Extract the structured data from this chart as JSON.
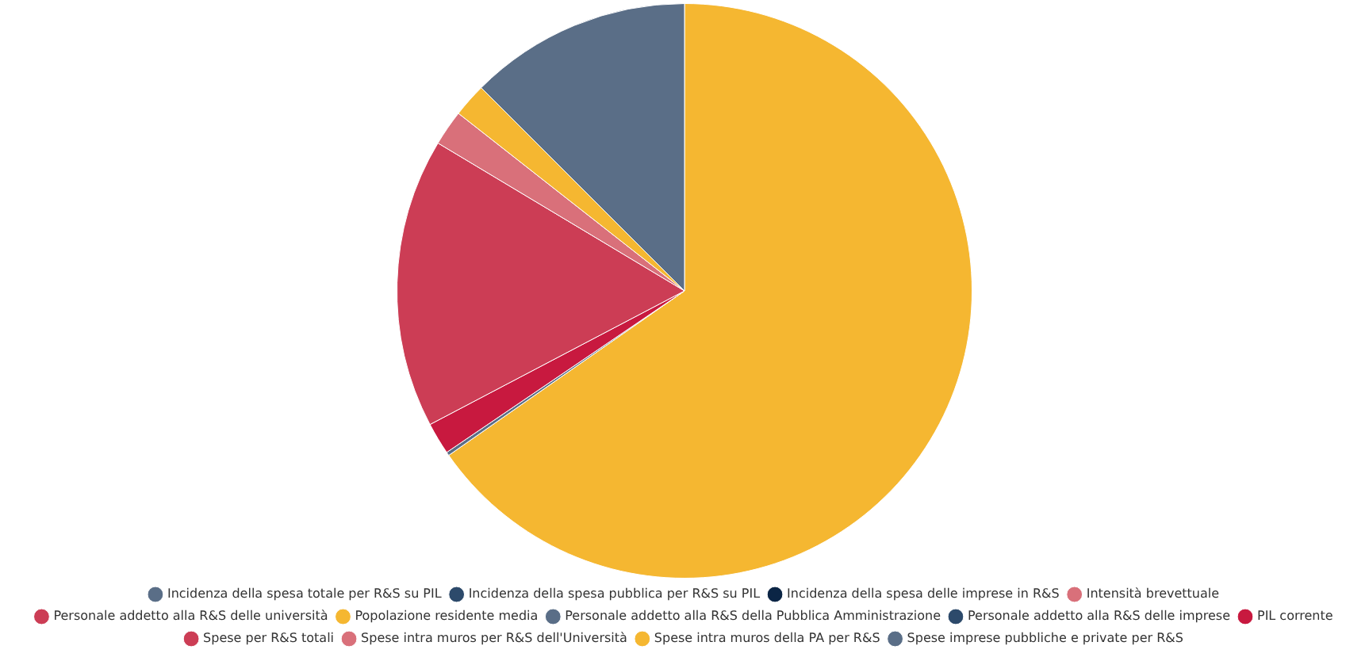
{
  "chart_data": {
    "type": "pie",
    "categories": [
      "Incidenza della spesa totale per R&S su PIL",
      "Incidenza della spesa pubblica per R&S su PIL",
      "Incidenza della spesa delle imprese in R&S",
      "Intensità brevettuale",
      "Personale addetto alla R&S delle università",
      "Popolazione residente media",
      "Personale addetto alla R&S della Pubblica Amministrazione",
      "Personale addetto alla R&S delle imprese",
      "PIL corrente",
      "Spese per R&S totali",
      "Spese intra muros per R&S dell'Università",
      "Spese intra muros della PA per R&S",
      "Spese imprese pubbliche e private per R&S"
    ],
    "values": [
      null,
      null,
      null,
      null,
      null,
      65.3,
      0.2,
      null,
      1.8,
      16.3,
      2.0,
      1.9,
      12.5
    ],
    "colors": [
      "#5a6e87",
      "#2d4a6b",
      "#0b2545",
      "#d9707a",
      "#cc3d55",
      "#f5b731",
      "#5a6e87",
      "#2d4a6b",
      "#c8193f",
      "#cc3d55",
      "#d9707a",
      "#f5b731",
      "#5a6e87"
    ],
    "legend": "bottom"
  }
}
